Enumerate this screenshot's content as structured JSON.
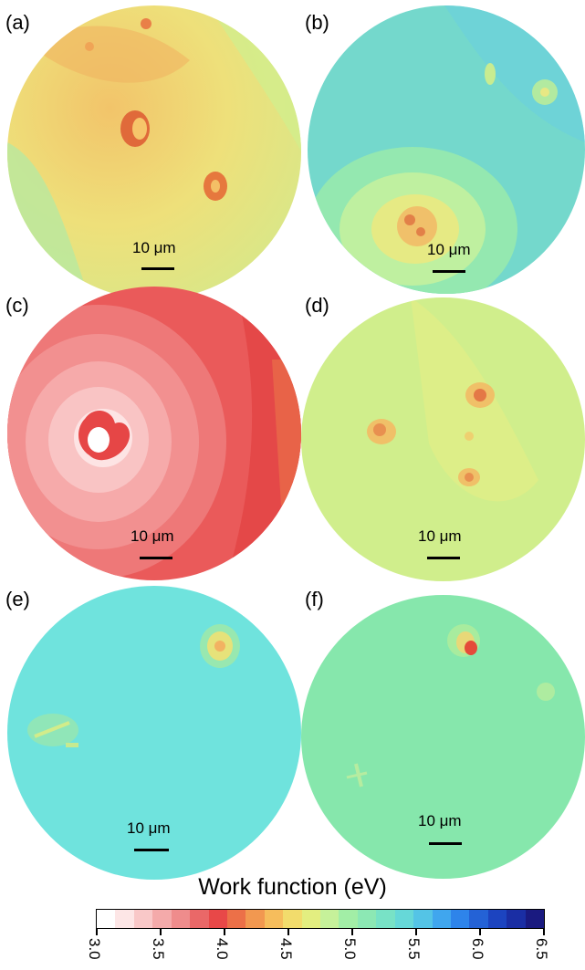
{
  "panels": [
    {
      "label": "(a)",
      "scale_text": "10 μm",
      "base_color": "#e9e27a"
    },
    {
      "label": "(b)",
      "scale_text": "10 μm",
      "base_color": "#77dcc6"
    },
    {
      "label": "(c)",
      "scale_text": "10 μm",
      "base_color": "#ec6464"
    },
    {
      "label": "(d)",
      "scale_text": "10 μm",
      "base_color": "#d2ee8c"
    },
    {
      "label": "(e)",
      "scale_text": "10 μm",
      "base_color": "#6fe3dd"
    },
    {
      "label": "(f)",
      "scale_text": "10 μm",
      "base_color": "#86e7ac"
    }
  ],
  "colorbar": {
    "title": "Work function (eV)",
    "ticks": [
      "3.0",
      "3.5",
      "4.0",
      "4.5",
      "5.0",
      "5.5",
      "6.0",
      "6.5"
    ],
    "range": [
      3.0,
      6.5
    ],
    "colors": [
      "#ffffff",
      "#fde6e6",
      "#f9c8c8",
      "#f4aaaa",
      "#ef8c8c",
      "#ea6868",
      "#e84848",
      "#ec7048",
      "#f29850",
      "#f6bd5c",
      "#f2dc6c",
      "#e3ee80",
      "#c6f19a",
      "#a2eea6",
      "#8ce8b4",
      "#78e2c6",
      "#66d8d8",
      "#54c4e6",
      "#40a6ee",
      "#2e84ea",
      "#2462d6",
      "#1c44c0",
      "#1a2ea4",
      "#1a1a80"
    ]
  }
}
